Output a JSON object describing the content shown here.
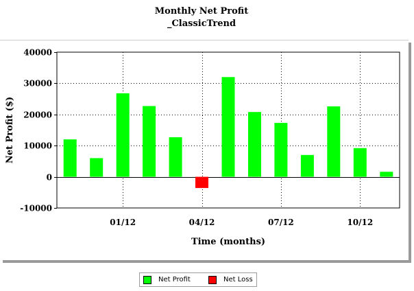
{
  "title": "Monthly Net Profit",
  "subtitle": "_ClassicTrend",
  "colors": {
    "profit": "#00ff00",
    "loss": "#ff0000"
  },
  "legend": {
    "items": [
      {
        "label": "Net Profit",
        "color": "#00ff00"
      },
      {
        "label": "Net Loss",
        "color": "#ff0000"
      }
    ]
  },
  "chart_data": {
    "type": "bar",
    "title": "Monthly Net Profit",
    "subtitle": "_ClassicTrend",
    "xlabel": "Time (months)",
    "ylabel": "Net Profit ($)",
    "ylim": [
      -10000,
      40000
    ],
    "yticks": [
      -10000,
      0,
      10000,
      20000,
      30000,
      40000
    ],
    "ytick_labels": [
      "-10000",
      "0",
      "10000",
      "20000",
      "30000",
      "40000"
    ],
    "xtick_labels": [
      {
        "label": "01/12",
        "month_index": 2
      },
      {
        "label": "04/12",
        "month_index": 5
      },
      {
        "label": "07/12",
        "month_index": 8
      },
      {
        "label": "10/12",
        "month_index": 11
      }
    ],
    "grid": "dotted",
    "legend": "bottom",
    "values": [
      12000,
      6000,
      26800,
      22700,
      12700,
      -3600,
      32000,
      20800,
      17300,
      7000,
      22600,
      9200,
      1600
    ],
    "series": [
      {
        "name": "Net Profit",
        "color": "#00ff00"
      },
      {
        "name": "Net Loss",
        "color": "#ff0000"
      }
    ]
  }
}
